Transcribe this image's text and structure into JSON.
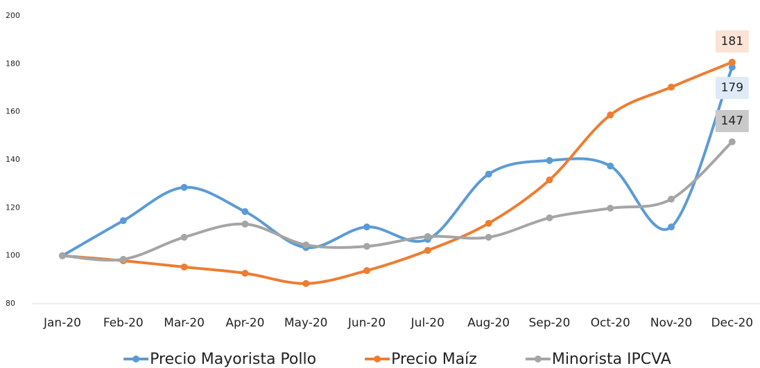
{
  "chart_data": {
    "type": "line",
    "categories": [
      "Jan-20",
      "Feb-20",
      "Mar-20",
      "Apr-20",
      "May-20",
      "Jun-20",
      "Jul-20",
      "Aug-20",
      "Sep-20",
      "Oct-20",
      "Nov-20",
      "Dec-20"
    ],
    "series": [
      {
        "name": "Precio Mayorista Pollo",
        "color": "#5b9bd5",
        "label_color": "#deebf7",
        "values": [
          100,
          114.6,
          128.5,
          118.4,
          103.4,
          112,
          106.8,
          134,
          139.7,
          137.4,
          112,
          178.6
        ],
        "value_labels": [
          null,
          null,
          null,
          null,
          null,
          null,
          null,
          null,
          null,
          null,
          null,
          "179"
        ]
      },
      {
        "name": "Precio Maíz",
        "color": "#ed7d31",
        "label_color": "#fbe3d6",
        "values": [
          100,
          97.9,
          95.3,
          92.7,
          88.4,
          93.8,
          102.2,
          113.5,
          131.6,
          158.7,
          170.3,
          180.7
        ],
        "value_labels": [
          null,
          null,
          null,
          null,
          null,
          null,
          null,
          null,
          null,
          null,
          null,
          "181"
        ]
      },
      {
        "name": "Minorista IPCVA",
        "color": "#a5a5a5",
        "label_color": "#c9c9c9",
        "values": [
          100,
          98.5,
          107.7,
          113.2,
          104.5,
          103.9,
          108,
          107.7,
          115.8,
          119.8,
          123.6,
          147.5
        ],
        "value_labels": [
          null,
          null,
          null,
          null,
          null,
          null,
          null,
          null,
          null,
          null,
          null,
          "147"
        ]
      }
    ],
    "ylim": [
      80,
      200
    ],
    "yticks": [
      80,
      100,
      120,
      140,
      160,
      180,
      200
    ],
    "grid": false,
    "legend": "bottom"
  }
}
